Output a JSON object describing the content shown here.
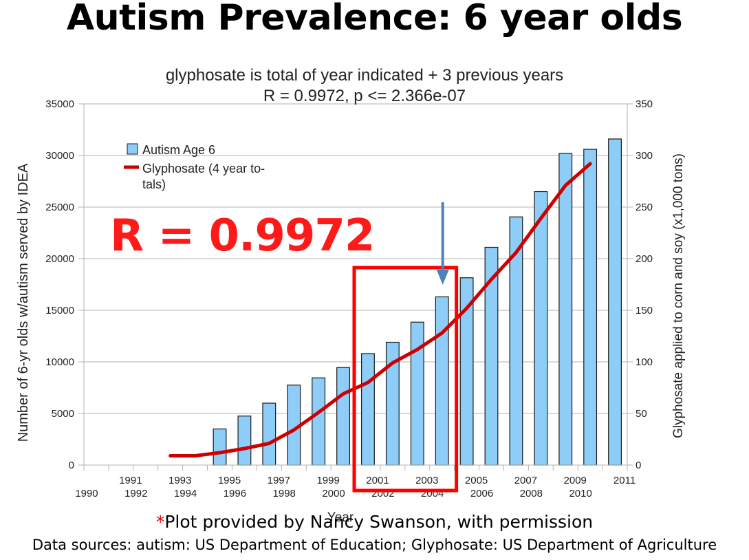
{
  "slide": {
    "title": "Autism Prevalence: 6 year olds",
    "caption_star": "*",
    "caption_text": "Plot provided by Nancy Swanson, with permission",
    "sources": "Data sources: autism: US Department of Education; Glyphosate: US Department of Agriculture"
  },
  "annotation": {
    "r_value": "R = 0.9972",
    "highlight_years": [
      "2001",
      "2004"
    ],
    "arrow_year": "2004",
    "color": "#ff0000",
    "arrow_color": "#4f81bd"
  },
  "chart_data": {
    "type": "bar",
    "title_line1": "glyphosate is total of year indicated + 3 previous years",
    "title_line2": "R = 0.9972, p <= 2.366e-07",
    "xlabel": "Year",
    "ylabel_left": "Number of 6-yr olds w/autism served by IDEA",
    "ylabel_right": "Glyphosate applied to corn and soy (x1,000 tons)",
    "categories": [
      "1990",
      "1991",
      "1992",
      "1993",
      "1994",
      "1995",
      "1996",
      "1997",
      "1998",
      "1999",
      "2000",
      "2001",
      "2002",
      "2003",
      "2004",
      "2005",
      "2006",
      "2007",
      "2008",
      "2009",
      "2010",
      "2011"
    ],
    "ylim_left": [
      0,
      35000
    ],
    "yticks_left": [
      0,
      5000,
      10000,
      15000,
      20000,
      25000,
      30000,
      35000
    ],
    "ylim_right": [
      0,
      350
    ],
    "yticks_right": [
      0,
      50,
      100,
      150,
      200,
      250,
      300,
      350
    ],
    "grid": true,
    "legend_position": "top-left",
    "series": [
      {
        "name": "Autism Age 6",
        "type": "bar",
        "axis": "left",
        "color": "#8dcdf8",
        "values": [
          null,
          null,
          null,
          null,
          null,
          3500,
          4750,
          6000,
          7750,
          8450,
          9450,
          10800,
          11900,
          13850,
          16300,
          18150,
          21100,
          24050,
          26500,
          30200,
          30600,
          31600
        ]
      },
      {
        "name": "Glyphosate (4 year totals)",
        "legend_label": [
          "Glyphosate (4 year to-",
          "tals)"
        ],
        "type": "line",
        "axis": "right",
        "color": "#cc0000",
        "values": [
          null,
          null,
          null,
          9,
          9,
          12,
          16,
          21,
          34,
          51,
          69,
          80,
          99,
          112,
          128,
          152,
          180,
          206,
          239,
          271,
          292,
          null
        ]
      }
    ]
  }
}
